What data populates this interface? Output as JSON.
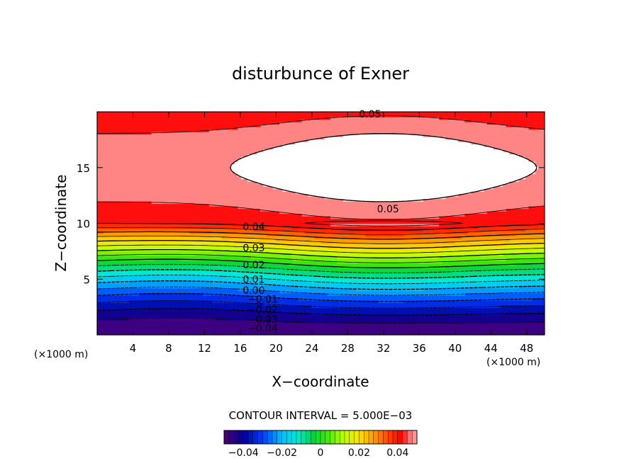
{
  "chart_data": {
    "type": "contour",
    "title": "disturbunce of Exner",
    "xlabel": "X−coordinate",
    "ylabel": "Z−coordinate",
    "x_unit": "(×1000 m)",
    "y_unit": "(×1000 m)",
    "xlim": [
      0,
      50
    ],
    "ylim": [
      0,
      20
    ],
    "x_ticks": [
      4,
      8,
      12,
      16,
      20,
      24,
      28,
      32,
      36,
      40,
      44,
      48
    ],
    "y_ticks": [
      5,
      10,
      15
    ],
    "contour_interval_text": "CONTOUR INTERVAL = 5.000E−03",
    "contour_interval": 0.005,
    "value_range": [
      -0.05,
      0.055
    ],
    "negative_contours_dashed": true,
    "contour_labels": [
      {
        "text": "0.05",
        "x": 30.5,
        "z": 19.8
      },
      {
        "text": "0.05",
        "x": 32.5,
        "z": 11.3
      },
      {
        "text": "0.04",
        "x": 17.5,
        "z": 9.7
      },
      {
        "text": "0.03",
        "x": 17.5,
        "z": 7.8
      },
      {
        "text": "0.02",
        "x": 17.5,
        "z": 6.3
      },
      {
        "text": "0.01",
        "x": 17.5,
        "z": 5.0
      },
      {
        "text": "0.00",
        "x": 17.5,
        "z": 4.0
      },
      {
        "text": "−0.01",
        "x": 18.5,
        "z": 3.2
      },
      {
        "text": "−0.02",
        "x": 18.5,
        "z": 2.3
      },
      {
        "text": "−0.03",
        "x": 18.5,
        "z": 1.4
      },
      {
        "text": "−0.04",
        "x": 18.5,
        "z": 0.6
      }
    ],
    "colorbar": {
      "ticks": [
        "−0.04",
        "−0.02",
        "0",
        "0.02",
        "0.04"
      ],
      "tick_values": [
        -0.04,
        -0.02,
        0,
        0.02,
        0.04
      ],
      "range": [
        -0.05,
        0.05
      ]
    }
  }
}
